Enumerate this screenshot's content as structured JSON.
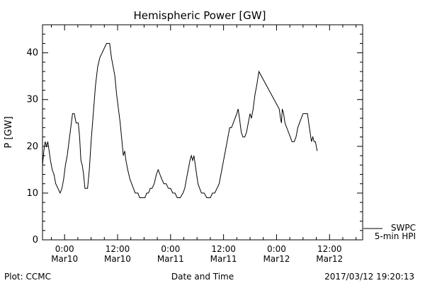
{
  "chart_data": {
    "type": "line",
    "title": "Hemispheric Power [GW]",
    "ylabel": "P [GW]",
    "xlabel": "Date and Time",
    "ylim": [
      0,
      46
    ],
    "y_ticks": [
      0,
      10,
      20,
      30,
      40
    ],
    "x_ticks": [
      {
        "t": 0,
        "line1": "0:00",
        "line2": "Mar10"
      },
      {
        "t": 12,
        "line1": "12:00",
        "line2": "Mar10"
      },
      {
        "t": 24,
        "line1": "0:00",
        "line2": "Mar11"
      },
      {
        "t": 36,
        "line1": "12:00",
        "line2": "Mar11"
      },
      {
        "t": 48,
        "line1": "0:00",
        "line2": "Mar12"
      },
      {
        "t": 60,
        "line1": "12:00",
        "line2": "Mar12"
      }
    ],
    "xlim": [
      -5,
      67.5
    ],
    "legend": {
      "line1": "SWPC",
      "line2": "5-min HPI",
      "placement": "bottom-right, outside"
    },
    "series": [
      {
        "name": "SWPC 5-min HPI",
        "points": [
          [
            -5.0,
            16
          ],
          [
            -4.7,
            19
          ],
          [
            -4.4,
            21
          ],
          [
            -4.1,
            20
          ],
          [
            -3.8,
            21
          ],
          [
            -3.5,
            19
          ],
          [
            -3.2,
            17
          ],
          [
            -2.8,
            15
          ],
          [
            -2.4,
            14
          ],
          [
            -2.0,
            12
          ],
          [
            -1.5,
            11
          ],
          [
            -1.0,
            10
          ],
          [
            -0.6,
            11
          ],
          [
            -0.2,
            13
          ],
          [
            0.2,
            16
          ],
          [
            0.6,
            18
          ],
          [
            1.0,
            21
          ],
          [
            1.4,
            24
          ],
          [
            1.8,
            27
          ],
          [
            2.2,
            27
          ],
          [
            2.6,
            25
          ],
          [
            3.1,
            25
          ],
          [
            3.4,
            22
          ],
          [
            3.7,
            17
          ],
          [
            4.0,
            16
          ],
          [
            4.3,
            14
          ],
          [
            4.6,
            11
          ],
          [
            5.2,
            11
          ],
          [
            5.6,
            15
          ],
          [
            6.0,
            21
          ],
          [
            6.5,
            27
          ],
          [
            7.0,
            33
          ],
          [
            7.5,
            37
          ],
          [
            8.0,
            39
          ],
          [
            8.5,
            40
          ],
          [
            9.0,
            41
          ],
          [
            9.5,
            42
          ],
          [
            10.2,
            42
          ],
          [
            10.6,
            39
          ],
          [
            11.0,
            37
          ],
          [
            11.4,
            35
          ],
          [
            11.8,
            31
          ],
          [
            12.2,
            28
          ],
          [
            12.6,
            25
          ],
          [
            13.0,
            21
          ],
          [
            13.3,
            18
          ],
          [
            13.6,
            19
          ],
          [
            13.9,
            17
          ],
          [
            14.3,
            15
          ],
          [
            14.8,
            13
          ],
          [
            15.2,
            12
          ],
          [
            15.6,
            11
          ],
          [
            16.0,
            10
          ],
          [
            16.6,
            10
          ],
          [
            17.0,
            9
          ],
          [
            17.6,
            9
          ],
          [
            18.2,
            9
          ],
          [
            18.6,
            10
          ],
          [
            19.0,
            10
          ],
          [
            19.4,
            11
          ],
          [
            19.8,
            11
          ],
          [
            20.3,
            12
          ],
          [
            20.8,
            14
          ],
          [
            21.2,
            15
          ],
          [
            21.6,
            14
          ],
          [
            22.0,
            13
          ],
          [
            22.5,
            12
          ],
          [
            23.0,
            12
          ],
          [
            23.5,
            11
          ],
          [
            24.0,
            11
          ],
          [
            24.5,
            10
          ],
          [
            25.0,
            10
          ],
          [
            25.5,
            9
          ],
          [
            26.2,
            9
          ],
          [
            26.8,
            10
          ],
          [
            27.2,
            11
          ],
          [
            27.6,
            13
          ],
          [
            28.0,
            15
          ],
          [
            28.4,
            17
          ],
          [
            28.7,
            18
          ],
          [
            29.0,
            17
          ],
          [
            29.3,
            18
          ],
          [
            29.6,
            16
          ],
          [
            29.9,
            14
          ],
          [
            30.2,
            12
          ],
          [
            30.6,
            11
          ],
          [
            31.0,
            10
          ],
          [
            31.6,
            10
          ],
          [
            32.2,
            9
          ],
          [
            33.0,
            9
          ],
          [
            33.5,
            10
          ],
          [
            34.0,
            10
          ],
          [
            34.5,
            11
          ],
          [
            35.0,
            12
          ],
          [
            35.4,
            14
          ],
          [
            35.8,
            16
          ],
          [
            36.2,
            18
          ],
          [
            36.6,
            20
          ],
          [
            37.0,
            22
          ],
          [
            37.4,
            24
          ],
          [
            37.8,
            24
          ],
          [
            38.2,
            25
          ],
          [
            38.6,
            26
          ],
          [
            39.0,
            27
          ],
          [
            39.3,
            28
          ],
          [
            39.6,
            26
          ],
          [
            40.0,
            23
          ],
          [
            40.4,
            22
          ],
          [
            40.8,
            22
          ],
          [
            41.2,
            23
          ],
          [
            41.6,
            25
          ],
          [
            42.0,
            27
          ],
          [
            42.3,
            26
          ],
          [
            42.7,
            28
          ],
          [
            43.1,
            31
          ],
          [
            43.5,
            33
          ],
          [
            44.0,
            36
          ],
          [
            48.6,
            28
          ],
          [
            48.9,
            26
          ],
          [
            49.1,
            25
          ],
          [
            49.3,
            28
          ],
          [
            49.6,
            27
          ],
          [
            49.9,
            25
          ],
          [
            50.3,
            24
          ],
          [
            50.7,
            23
          ],
          [
            51.1,
            22
          ],
          [
            51.5,
            21
          ],
          [
            52.0,
            21
          ],
          [
            52.4,
            22
          ],
          [
            52.8,
            24
          ],
          [
            53.2,
            25
          ],
          [
            53.6,
            26
          ],
          [
            54.0,
            27
          ],
          [
            54.5,
            27
          ],
          [
            55.0,
            27
          ],
          [
            55.3,
            25
          ],
          [
            55.6,
            23
          ],
          [
            55.9,
            21
          ],
          [
            56.2,
            22
          ],
          [
            56.5,
            21
          ],
          [
            56.8,
            21
          ],
          [
            57.0,
            20
          ],
          [
            57.2,
            19
          ]
        ]
      }
    ]
  },
  "footer": {
    "left": "Plot: CCMC",
    "right": "2017/03/12 19:20:13"
  }
}
